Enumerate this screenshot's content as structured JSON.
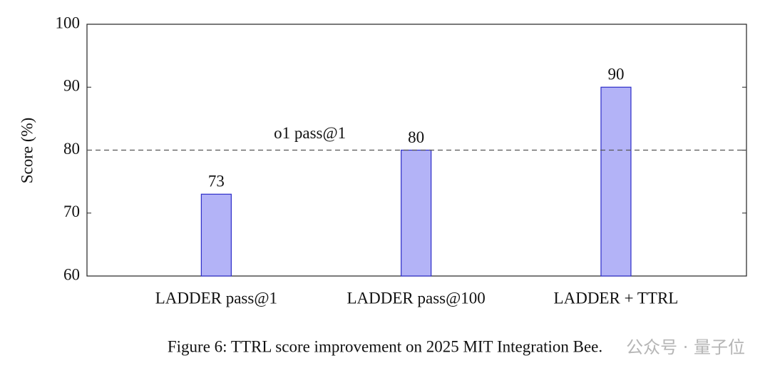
{
  "chart_data": {
    "type": "bar",
    "categories": [
      "LADDER pass@1",
      "LADDER pass@100",
      "LADDER + TTRL"
    ],
    "values": [
      73,
      80,
      90
    ],
    "color": "#b3b3f7",
    "edge_color": "#2b2bc8",
    "y_label": "Score (%)",
    "ylim": [
      60,
      100
    ],
    "yticks": [
      60,
      70,
      80,
      90,
      100
    ],
    "reference_line": {
      "value": 80,
      "label": "o1 pass@1"
    },
    "caption": "Figure 6: TTRL score improvement on 2025 MIT Integration Bee.",
    "watermark": "公众号 · 量子位"
  }
}
